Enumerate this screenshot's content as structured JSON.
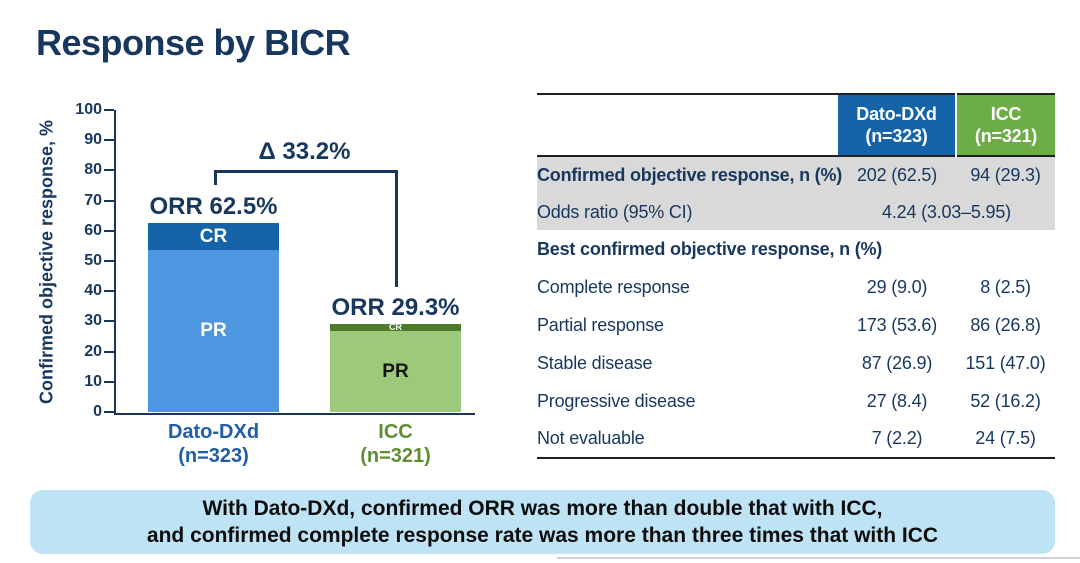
{
  "slide": {
    "title": "Response by BICR"
  },
  "colors": {
    "navy": "#17375e",
    "table_header_blue": "#1563a8",
    "table_header_green": "#6cae45",
    "gray_row": "#d9d9d9",
    "banner_bg": "#bee3f4"
  },
  "chart_data": {
    "type": "bar",
    "stacked": true,
    "title": "",
    "xlabel": "",
    "ylabel": "Confirmed objective response, %",
    "ylim": [
      0,
      100
    ],
    "ytick_step": 10,
    "grid": false,
    "legend_position": "in-bar",
    "groups": [
      {
        "name": "Dato-DXd",
        "sublabel": "(n=323)",
        "label_color": "#1f5ea9",
        "orr_annotation": "ORR 62.5%",
        "orr_total_pct": 62.5,
        "segments": [
          {
            "name": "PR",
            "value": 53.6,
            "color": "#4e96e0",
            "text_color": "#ffffff"
          },
          {
            "name": "CR",
            "value": 9.0,
            "color": "#1563a8",
            "text_color": "#ffffff"
          }
        ]
      },
      {
        "name": "ICC",
        "sublabel": "(n=321)",
        "label_color": "#5e8f32",
        "orr_annotation": "ORR 29.3%",
        "orr_total_pct": 29.3,
        "segments": [
          {
            "name": "PR",
            "value": 26.8,
            "color": "#9cc97a",
            "text_color": "#141414"
          },
          {
            "name": "CR",
            "value": 2.5,
            "color": "#4e7a2c",
            "text_color": "#ffffff"
          }
        ]
      }
    ],
    "delta_annotation": "Δ 33.2%"
  },
  "table": {
    "columns": [
      {
        "name": "Dato-DXd",
        "sublabel": "(n=323)",
        "color": "#1563a8"
      },
      {
        "name": "ICC",
        "sublabel": "(n=321)",
        "color": "#6cae45"
      }
    ],
    "rows": [
      {
        "label": "Confirmed objective response, n (%)",
        "dato": "202 (62.5)",
        "icc": "94 (29.3)"
      },
      {
        "label": "Odds ratio (95% CI)",
        "combined": "4.24 (3.03–5.95)"
      },
      {
        "label": "Best confirmed objective response, n (%)"
      },
      {
        "label": "Complete response",
        "dato": "29 (9.0)",
        "icc": "8 (2.5)"
      },
      {
        "label": "Partial response",
        "dato": "173 (53.6)",
        "icc": "86 (26.8)"
      },
      {
        "label": "Stable disease",
        "dato": "87 (26.9)",
        "icc": "151 (47.0)"
      },
      {
        "label": "Progressive disease",
        "dato": "27 (8.4)",
        "icc": "52 (16.2)"
      },
      {
        "label": "Not evaluable",
        "dato": "7 (2.2)",
        "icc": "24 (7.5)"
      }
    ]
  },
  "banner": {
    "line1": "With Dato-DXd, confirmed ORR was more than double that with ICC,",
    "line2": "and confirmed complete response rate was more than three times that with ICC"
  }
}
